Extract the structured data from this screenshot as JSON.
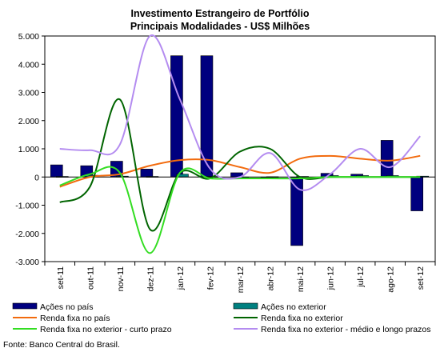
{
  "chart_data": {
    "type": "bar",
    "title_line1": "Investimento Estrangeiro de Portfólio",
    "title_line2": "Principais Modalidades - US$ Milhões",
    "categories": [
      "set-11",
      "out-11",
      "nov-11",
      "dez-11",
      "jan-12",
      "fev-12",
      "mar-12",
      "abr-12",
      "mai-12",
      "jun-12",
      "jul-12",
      "ago-12",
      "set-12"
    ],
    "y_ticks": [
      "5.000",
      "4.000",
      "3.000",
      "2.000",
      "1.000",
      "0",
      "-1.000",
      "-2.000",
      "-3.000"
    ],
    "ylim": [
      -3000,
      5000
    ],
    "grid": false,
    "legend_position": "bottom",
    "bar_series": [
      {
        "name": "Ações no país",
        "color": "#00007f",
        "values": [
          430,
          400,
          560,
          280,
          4300,
          4300,
          150,
          -30,
          -2430,
          130,
          100,
          1300,
          -1200
        ]
      },
      {
        "name": "Ações no exterior",
        "color": "#008080",
        "values": [
          20,
          60,
          30,
          20,
          100,
          20,
          -20,
          10,
          20,
          50,
          50,
          50,
          30
        ]
      }
    ],
    "line_series": [
      {
        "name": "Renda fixa no país",
        "color": "#f26b0e",
        "values": [
          -350,
          0,
          100,
          400,
          600,
          600,
          350,
          150,
          650,
          750,
          650,
          580,
          750
        ]
      },
      {
        "name": "Renda fixa no exterior",
        "color": "#006400",
        "values": [
          -900,
          -350,
          2750,
          -1850,
          150,
          -50,
          900,
          1000,
          0,
          0,
          0,
          0,
          0
        ]
      },
      {
        "name": "Renda fixa no exterior - curto prazo",
        "color": "#33dd22",
        "values": [
          -300,
          100,
          150,
          -2700,
          150,
          -50,
          -50,
          -50,
          -50,
          0,
          0,
          0,
          0
        ]
      },
      {
        "name": "Renda fixa no exterior - médio e longo prazos",
        "color": "#b48cf0",
        "values": [
          1000,
          950,
          1150,
          5000,
          2750,
          300,
          0,
          850,
          -450,
          100,
          1000,
          350,
          1450
        ]
      }
    ],
    "source": "Fonte: Banco Central do Brasil."
  }
}
